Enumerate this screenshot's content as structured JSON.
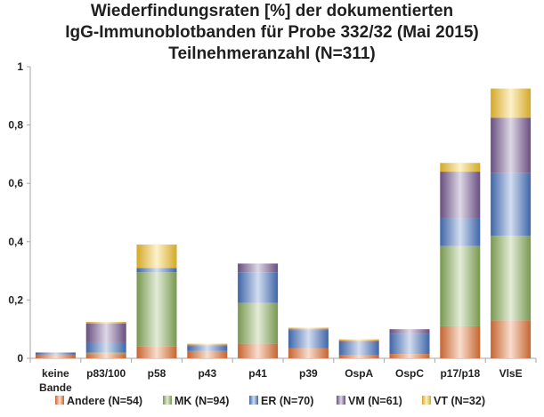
{
  "chart_data": {
    "type": "bar",
    "stacked": true,
    "title_lines": [
      "Wiederfindungsraten [%] der dokumentierten",
      "IgG-Immunoblotbanden für Probe 332/32 (Mai 2015)",
      "Teilnehmeranzahl (N=311)"
    ],
    "categories": [
      [
        "keine",
        "Bande"
      ],
      [
        "p83/100"
      ],
      [
        "p58"
      ],
      [
        "p43"
      ],
      [
        "p41"
      ],
      [
        "p39"
      ],
      [
        "OspA"
      ],
      [
        "OspC"
      ],
      [
        "p17/p18"
      ],
      [
        "VlsE"
      ]
    ],
    "series": [
      {
        "name": "Andere (N=54)",
        "color": "#e8773a",
        "values": [
          0.01,
          0.015,
          0.04,
          0.025,
          0.05,
          0.035,
          0.01,
          0.015,
          0.11,
          0.13
        ]
      },
      {
        "name": "MK (N=94)",
        "color": "#8db35e",
        "values": [
          0.0,
          0.005,
          0.255,
          0.0,
          0.14,
          0.0,
          0.0,
          0.0,
          0.275,
          0.29
        ]
      },
      {
        "name": "ER (N=70)",
        "color": "#4a78c4",
        "values": [
          0.005,
          0.035,
          0.015,
          0.015,
          0.105,
          0.06,
          0.045,
          0.07,
          0.095,
          0.215
        ]
      },
      {
        "name": "VM (N=61)",
        "color": "#7a5d96",
        "values": [
          0.005,
          0.065,
          0.0,
          0.005,
          0.03,
          0.005,
          0.005,
          0.015,
          0.16,
          0.19
        ]
      },
      {
        "name": "VT (N=32)",
        "color": "#f8c72f",
        "values": [
          0.0,
          0.005,
          0.08,
          0.005,
          0.0,
          0.005,
          0.005,
          0.0,
          0.03,
          0.1
        ]
      }
    ],
    "yticks": [
      "0",
      "0,2",
      "0,4",
      "0,6",
      "0,8",
      "1"
    ],
    "ylim": [
      0,
      1
    ],
    "grid": false,
    "legend_position": "bottom"
  }
}
